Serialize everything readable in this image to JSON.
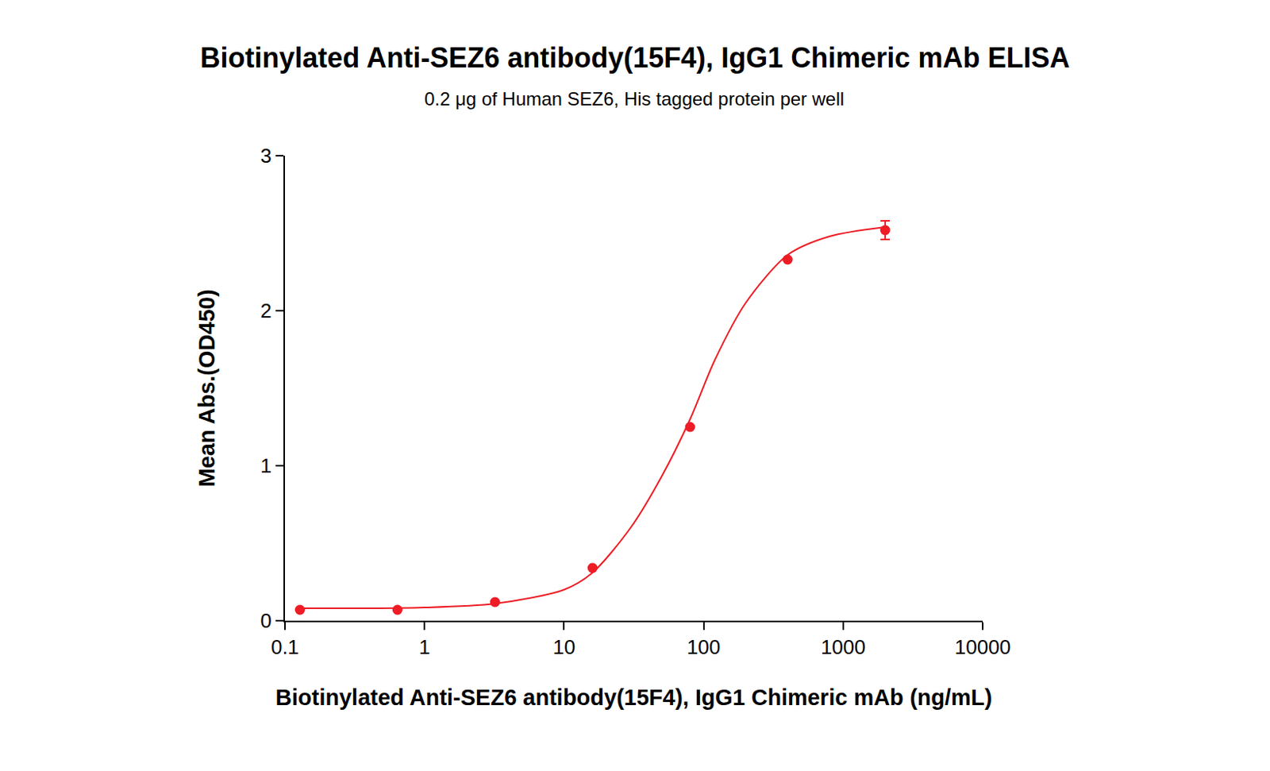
{
  "chart_data": {
    "type": "scatter",
    "title": "Biotinylated Anti-SEZ6 antibody(15F4), IgG1 Chimeric mAb ELISA",
    "subtitle": "0.2 μg of Human SEZ6, His tagged protein per well",
    "x_label": "Biotinylated Anti-SEZ6 antibody(15F4), IgG1 Chimeric mAb (ng/mL)",
    "y_label": "Mean Abs.(OD450)",
    "log": "x",
    "grid": false,
    "xlim": [
      0.1,
      10000
    ],
    "xticks": [
      0.1,
      1,
      10,
      100,
      1000,
      10000
    ],
    "ylim": [
      0,
      3
    ],
    "yticks": [
      0,
      1,
      2,
      3
    ],
    "series": [
      {
        "type": "scatter",
        "marker": "circle",
        "color": "#ee1c25",
        "x": [
          0.128,
          0.64,
          3.2,
          16,
          80,
          400,
          2000
        ],
        "values": [
          0.07,
          0.07,
          0.12,
          0.34,
          1.25,
          2.33,
          2.52
        ],
        "errors": [
          null,
          null,
          null,
          null,
          null,
          null,
          0.06
        ]
      },
      {
        "type": "line",
        "line_style": "solid",
        "color": "#ee1c25",
        "x": [
          0.128,
          1,
          3.2,
          10,
          16,
          30,
          50,
          80,
          120,
          200,
          400,
          800,
          2000
        ],
        "values": [
          0.08,
          0.085,
          0.11,
          0.2,
          0.31,
          0.6,
          0.93,
          1.3,
          1.68,
          2.05,
          2.36,
          2.48,
          2.54
        ]
      }
    ]
  }
}
